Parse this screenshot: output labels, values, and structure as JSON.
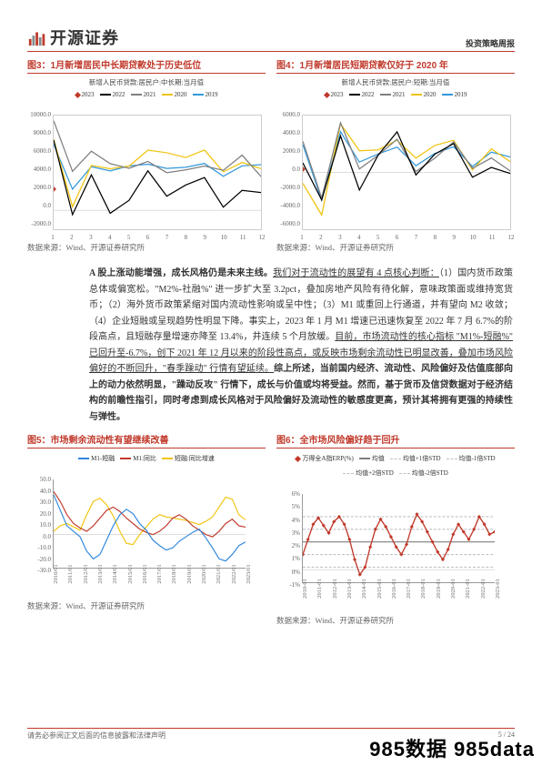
{
  "header": {
    "brand": "开源证券",
    "right": "投资策略周报"
  },
  "footer": {
    "left": "请务必参阅正文后面的信息披露和法律声明",
    "right": "5 / 24"
  },
  "watermark": "985数据 985data",
  "source_label_prefix": "数据来源：",
  "source_wind": "Wind、开源证券研究所",
  "years": {
    "y2023": "2023",
    "y2022": "2022",
    "y2021": "2021",
    "y2020": "2020",
    "y2019": "2019"
  },
  "series_colors": {
    "y2023": "#c0392b",
    "y2022": "#000000",
    "y2021": "#7f7f7f",
    "y2020": "#f1c40f",
    "y2019": "#3498db"
  },
  "fig3": {
    "title": "图3：1月新增居民中长期贷款处于历史低位",
    "sub": "新增人民币贷款:居民户:中长期:当月值",
    "yticks": [
      "10000.0",
      "8000.0",
      "6000.0",
      "4000.0",
      "2000.0",
      "0.0",
      "-2000.0"
    ],
    "xticks": [
      "1",
      "2",
      "3",
      "4",
      "5",
      "6",
      "7",
      "8",
      "9",
      "10",
      "11",
      "12"
    ],
    "ylim": [
      -2000,
      10000
    ],
    "d2019": [
      6969,
      2226,
      4605,
      4165,
      4677,
      4858,
      4417,
      4540,
      4943,
      3587,
      4689,
      4824
    ],
    "d2020": [
      7491,
      371,
      4738,
      4389,
      4662,
      6349,
      6067,
      5571,
      6362,
      4059,
      5049,
      4392
    ],
    "d2021": [
      9448,
      4113,
      6239,
      4918,
      4426,
      5156,
      3974,
      4259,
      4667,
      4221,
      5821,
      3558
    ],
    "d2022": [
      7424,
      -459,
      3735,
      -314,
      1047,
      4167,
      1486,
      2658,
      3456,
      332,
      2103,
      1865
    ],
    "d2023": [
      2231
    ]
  },
  "fig4": {
    "title": "图4：1月新增居民短期贷款仅好于 2020 年",
    "sub": "新增人民币贷款:居民户:短期:当月值",
    "yticks": [
      "6000.0",
      "4000.0",
      "2000.0",
      "0.0",
      "-2000.0",
      "-4000.0",
      "-6000.0"
    ],
    "xticks": [
      "1",
      "2",
      "3",
      "4",
      "5",
      "6",
      "7",
      "8",
      "9",
      "10",
      "11",
      "12"
    ],
    "ylim": [
      -6000,
      6000
    ],
    "d2019": [
      2930,
      -2932,
      4294,
      1093,
      1948,
      2667,
      695,
      1998,
      2707,
      623,
      2142,
      1635
    ],
    "d2020": [
      -1149,
      -4504,
      5144,
      2280,
      2381,
      3400,
      1510,
      2844,
      3394,
      272,
      2486,
      1142
    ],
    "d2021": [
      3278,
      -2691,
      5242,
      365,
      1806,
      3500,
      85,
      1496,
      3219,
      426,
      1517,
      157
    ],
    "d2022": [
      1006,
      -2911,
      3848,
      -1856,
      1840,
      4282,
      -269,
      1922,
      3038,
      -512,
      525,
      -113
    ],
    "d2023": [
      341
    ]
  },
  "body": {
    "p1": "A 股上涨动能增强，成长风格仍是未来主线。",
    "p2": "我们对于流动性的展望有 4 点核心判断：",
    "p3": "（1）国内货币政策总体或偏宽松。\"M2%-社融%\" 进一步扩大至 3.2pct，叠加房地产风险有待化解，意味政策面或维持宽货币；（2）海外货币政策紧缩对国内流动性影响或呈中性；（3）M1 或重回上行通道，并有望向 M2 收敛；（4）企业短融或呈现趋势性明显下降。事实上，2023 年 1 月 M1 增速已迅速恢复至 2022 年 7 月 6.7%的阶段高点，且短融存量增速亦降至 13.4%，并连续 5 个月放缓。",
    "p4": "目前，市场流动性的核心指标 \"M1%-短融%\" 已回升至-6.7%，创下 2021 年 12 月以来的阶段性高点，或反映市场剩余流动性已明显改善，叠加市场风险偏好的不断回升，\"春季躁动\" 行情有望延续。",
    "p5": "综上所述，当前国内经济、流动性、风险偏好及估值底部向上的动力依然明显，\"躁动反攻\" 行情下，成长与价值或均将受益。然而，基于货币及信贷数据对于经济结构的前瞻性指引，同时考虑到成长风格对于风险偏好及流动性的敏感度更高，预计其将拥有更强的持续性与弹性。"
  },
  "fig5": {
    "title": "图5：市场剩余流动性有望继续改善",
    "legend": {
      "a": "M1-短融",
      "b": "M1:同比",
      "c": "短融:同比增速"
    },
    "colors": {
      "a": "#2e86de",
      "b": "#c0392b",
      "c": "#f1c40f"
    },
    "yticks": [
      "50.0",
      "40.0",
      "30.0",
      "20.0",
      "10.0",
      "0.0",
      "-10.0",
      "-20.0",
      "-30.0"
    ],
    "ylim": [
      -30,
      50
    ],
    "xticks": [
      "2010/01",
      "2011/01",
      "2012/01",
      "2013/01",
      "2014/01",
      "2015/01",
      "2016/01",
      "2017/01",
      "2018/01",
      "2019/01",
      "2020/01",
      "2021/01",
      "2022/01",
      "2023/01"
    ],
    "a": [
      36,
      22,
      8,
      3,
      -2,
      -15,
      -22,
      -18,
      -5,
      8,
      18,
      23,
      19,
      10,
      4,
      -5,
      -10,
      -14,
      -12,
      -6,
      -2,
      2,
      5,
      -3,
      -12,
      -22,
      -24,
      -18,
      -10,
      -6.7
    ],
    "b": [
      39,
      30,
      18,
      10,
      6,
      3,
      8,
      15,
      22,
      25,
      21,
      15,
      10,
      5,
      2,
      0,
      3,
      8,
      15,
      18,
      14,
      8,
      4,
      0,
      -2,
      3,
      10,
      14,
      8,
      6.7
    ],
    "c": [
      3,
      8,
      10,
      7,
      4,
      18,
      30,
      33,
      27,
      17,
      3,
      -8,
      -9,
      0,
      7,
      14,
      18,
      16,
      15,
      14,
      13,
      11,
      9,
      12,
      16,
      25,
      34,
      32,
      18,
      13.4
    ]
  },
  "fig6": {
    "title": "图6：全市场风险偏好趋于回升",
    "legend": {
      "main": "万得全A指ERP(%)",
      "mean": "均值",
      "p1": "均值+1倍STD",
      "m1": "均值-1倍STD",
      "p2": "均值+2倍STD",
      "m2": "均值-2倍STD"
    },
    "colors": {
      "main": "#c0392b",
      "mean": "#7f7f7f",
      "std": "#bdc3c7"
    },
    "yticks": [
      "6%",
      "5%",
      "4%",
      "3%",
      "2%",
      "1%",
      "0%",
      "-1%"
    ],
    "ylim": [
      -1,
      6
    ],
    "xticks": [
      "2010-01",
      "2011-01",
      "2012-01",
      "2013-01",
      "2014-01",
      "2015-01",
      "2016-01",
      "2017-01",
      "2018-01",
      "2019-01",
      "2020-01",
      "2021-01",
      "2022-01",
      "2023-01"
    ],
    "levels": {
      "mean": 2.2,
      "p1": 3.2,
      "p2": 4.2,
      "m1": 1.2,
      "m2": 0.2
    },
    "series": [
      1.2,
      2.4,
      3.6,
      4.1,
      3.5,
      2.9,
      3.8,
      4.2,
      3.6,
      2.4,
      0.8,
      -0.4,
      0.2,
      1.8,
      3.2,
      4.0,
      3.4,
      2.6,
      1.8,
      1.2,
      2.0,
      3.4,
      4.4,
      3.8,
      3.0,
      2.2,
      1.4,
      0.8,
      1.6,
      2.8,
      3.6,
      3.0,
      2.4,
      3.2,
      4.2,
      3.6,
      2.8,
      3.0
    ]
  }
}
